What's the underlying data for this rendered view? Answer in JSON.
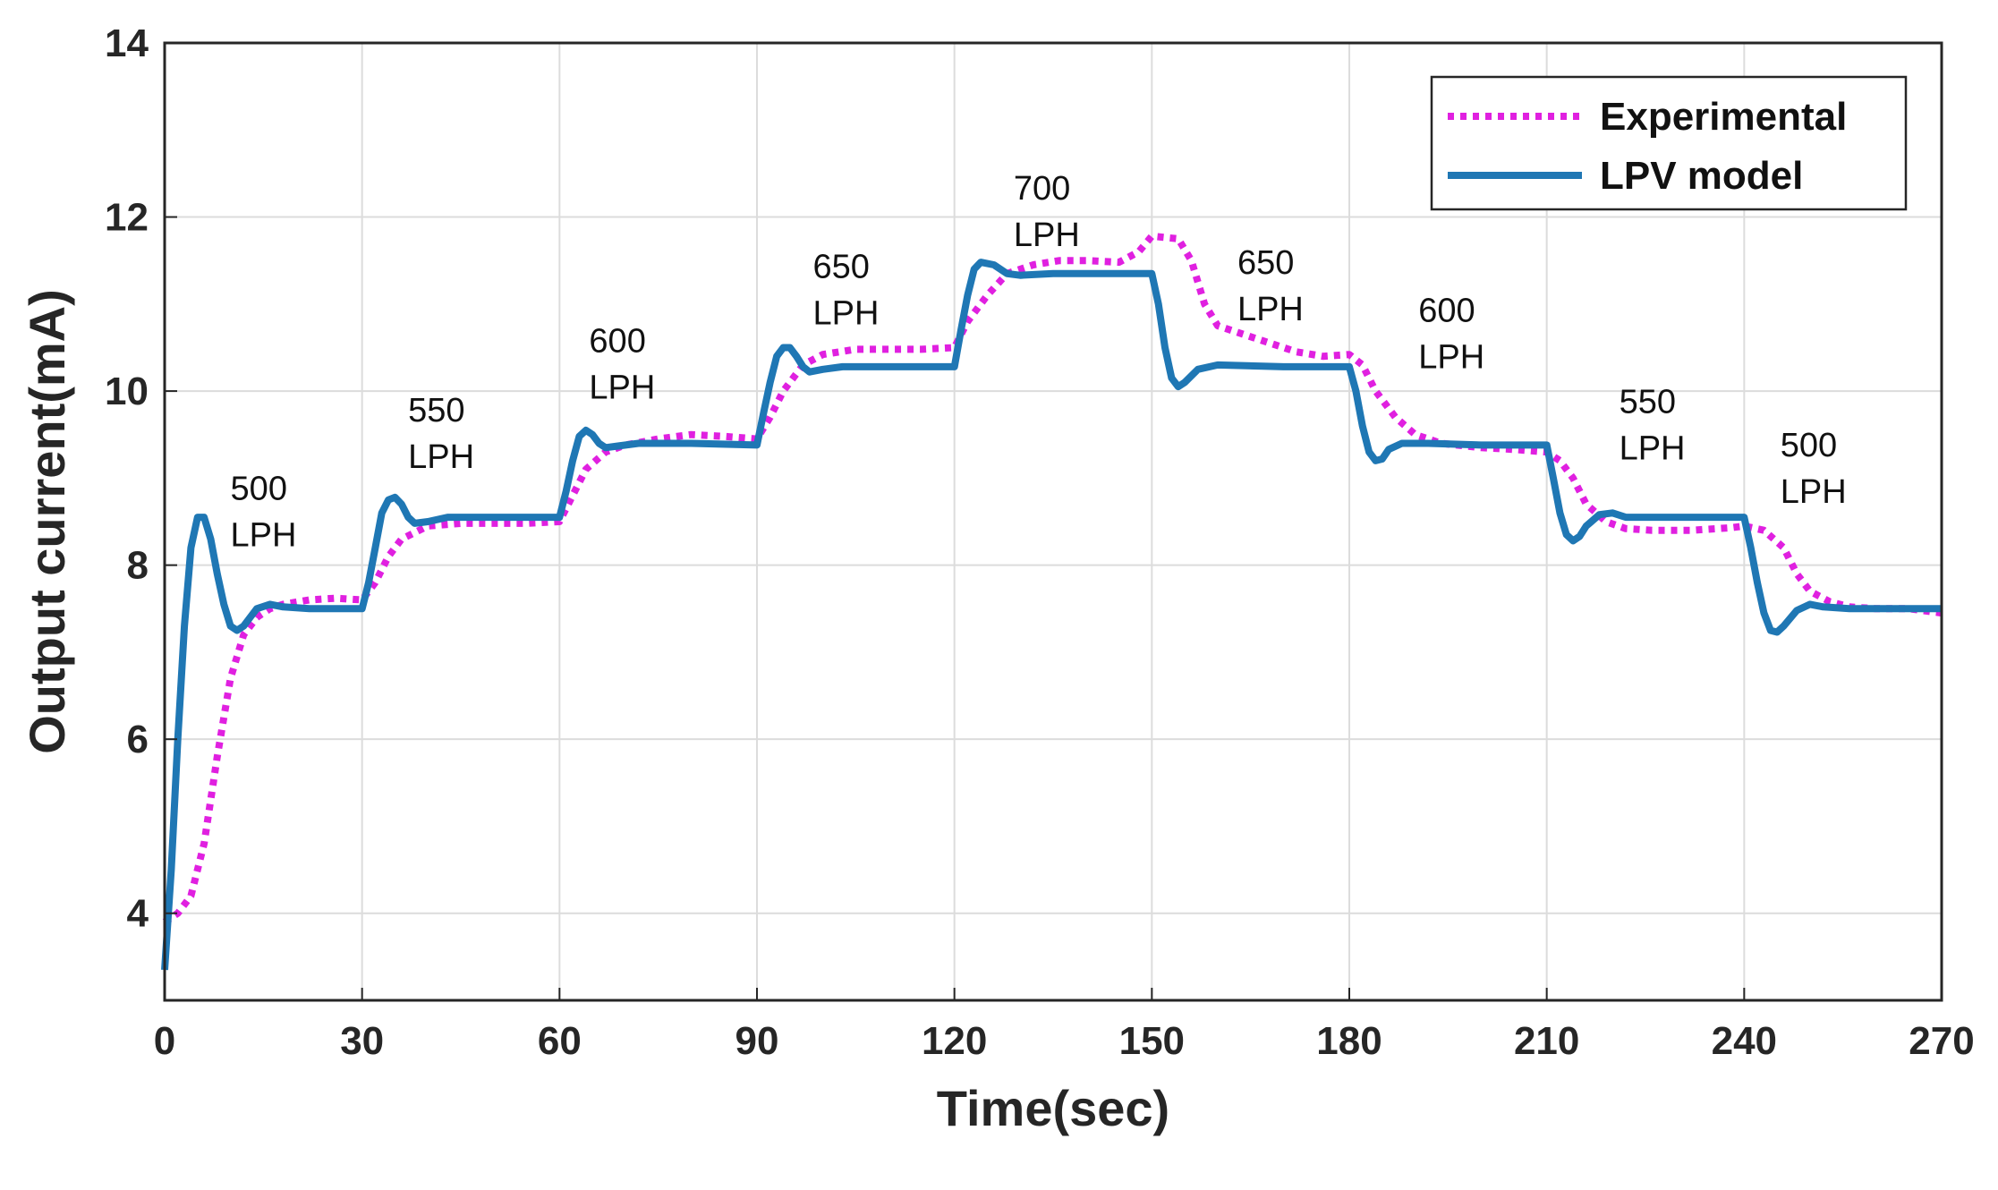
{
  "chart_data": {
    "type": "line",
    "title": "",
    "xlabel": "Time(sec)",
    "ylabel": "Output current(mA)",
    "xlim": [
      0,
      270
    ],
    "ylim": [
      3,
      14
    ],
    "xticks": [
      0,
      30,
      60,
      90,
      120,
      150,
      180,
      210,
      240,
      270
    ],
    "yticks": [
      4,
      6,
      8,
      10,
      12,
      14
    ],
    "grid": true,
    "legend_position": "top-right",
    "series": [
      {
        "name": "Experimental",
        "color": "#e020e0",
        "style": "dotted",
        "points": [
          [
            0,
            3.9
          ],
          [
            2,
            4.0
          ],
          [
            4,
            4.2
          ],
          [
            6,
            4.8
          ],
          [
            8,
            5.8
          ],
          [
            10,
            6.7
          ],
          [
            12,
            7.2
          ],
          [
            14,
            7.4
          ],
          [
            16,
            7.5
          ],
          [
            18,
            7.55
          ],
          [
            22,
            7.6
          ],
          [
            26,
            7.62
          ],
          [
            30,
            7.6
          ],
          [
            32,
            7.8
          ],
          [
            34,
            8.1
          ],
          [
            36,
            8.3
          ],
          [
            40,
            8.45
          ],
          [
            45,
            8.48
          ],
          [
            55,
            8.48
          ],
          [
            60,
            8.5
          ],
          [
            62,
            8.8
          ],
          [
            64,
            9.1
          ],
          [
            67,
            9.3
          ],
          [
            70,
            9.38
          ],
          [
            75,
            9.45
          ],
          [
            80,
            9.5
          ],
          [
            85,
            9.48
          ],
          [
            90,
            9.45
          ],
          [
            92,
            9.7
          ],
          [
            94,
            10.0
          ],
          [
            97,
            10.3
          ],
          [
            100,
            10.42
          ],
          [
            105,
            10.48
          ],
          [
            115,
            10.48
          ],
          [
            120,
            10.5
          ],
          [
            122,
            10.8
          ],
          [
            125,
            11.1
          ],
          [
            128,
            11.35
          ],
          [
            132,
            11.45
          ],
          [
            136,
            11.5
          ],
          [
            140,
            11.5
          ],
          [
            145,
            11.48
          ],
          [
            148,
            11.6
          ],
          [
            150,
            11.78
          ],
          [
            154,
            11.75
          ],
          [
            156,
            11.5
          ],
          [
            158,
            11.0
          ],
          [
            160,
            10.75
          ],
          [
            164,
            10.65
          ],
          [
            168,
            10.55
          ],
          [
            172,
            10.45
          ],
          [
            176,
            10.4
          ],
          [
            180,
            10.42
          ],
          [
            182,
            10.3
          ],
          [
            184,
            10.0
          ],
          [
            187,
            9.7
          ],
          [
            190,
            9.5
          ],
          [
            194,
            9.4
          ],
          [
            200,
            9.35
          ],
          [
            205,
            9.33
          ],
          [
            210,
            9.3
          ],
          [
            212,
            9.2
          ],
          [
            214,
            9.0
          ],
          [
            216,
            8.7
          ],
          [
            219,
            8.5
          ],
          [
            222,
            8.42
          ],
          [
            226,
            8.4
          ],
          [
            232,
            8.4
          ],
          [
            238,
            8.43
          ],
          [
            240,
            8.45
          ],
          [
            243,
            8.4
          ],
          [
            246,
            8.2
          ],
          [
            248,
            7.9
          ],
          [
            250,
            7.7
          ],
          [
            253,
            7.58
          ],
          [
            256,
            7.52
          ],
          [
            260,
            7.5
          ],
          [
            265,
            7.5
          ],
          [
            270,
            7.45
          ]
        ]
      },
      {
        "name": "LPV model",
        "color": "#1f77b4",
        "style": "solid",
        "points": [
          [
            0,
            3.35
          ],
          [
            1,
            4.5
          ],
          [
            2,
            6.0
          ],
          [
            3,
            7.3
          ],
          [
            4,
            8.2
          ],
          [
            5,
            8.55
          ],
          [
            6,
            8.55
          ],
          [
            7,
            8.3
          ],
          [
            8,
            7.9
          ],
          [
            9,
            7.55
          ],
          [
            10,
            7.3
          ],
          [
            11,
            7.25
          ],
          [
            12,
            7.3
          ],
          [
            13,
            7.4
          ],
          [
            14,
            7.5
          ],
          [
            16,
            7.55
          ],
          [
            18,
            7.52
          ],
          [
            22,
            7.5
          ],
          [
            28,
            7.5
          ],
          [
            30,
            7.5
          ],
          [
            31,
            7.8
          ],
          [
            32,
            8.2
          ],
          [
            33,
            8.6
          ],
          [
            34,
            8.75
          ],
          [
            35,
            8.78
          ],
          [
            36,
            8.7
          ],
          [
            37,
            8.55
          ],
          [
            38,
            8.48
          ],
          [
            40,
            8.5
          ],
          [
            43,
            8.55
          ],
          [
            48,
            8.55
          ],
          [
            55,
            8.55
          ],
          [
            60,
            8.55
          ],
          [
            61,
            8.85
          ],
          [
            62,
            9.2
          ],
          [
            63,
            9.48
          ],
          [
            64,
            9.55
          ],
          [
            65,
            9.5
          ],
          [
            66,
            9.4
          ],
          [
            67,
            9.35
          ],
          [
            69,
            9.37
          ],
          [
            72,
            9.4
          ],
          [
            80,
            9.4
          ],
          [
            90,
            9.38
          ],
          [
            91,
            9.75
          ],
          [
            92,
            10.1
          ],
          [
            93,
            10.4
          ],
          [
            94,
            10.5
          ],
          [
            95,
            10.5
          ],
          [
            96,
            10.4
          ],
          [
            97,
            10.28
          ],
          [
            98,
            10.22
          ],
          [
            100,
            10.25
          ],
          [
            103,
            10.28
          ],
          [
            110,
            10.28
          ],
          [
            120,
            10.28
          ],
          [
            121,
            10.7
          ],
          [
            122,
            11.1
          ],
          [
            123,
            11.4
          ],
          [
            124,
            11.48
          ],
          [
            126,
            11.45
          ],
          [
            128,
            11.35
          ],
          [
            130,
            11.33
          ],
          [
            135,
            11.35
          ],
          [
            145,
            11.35
          ],
          [
            150,
            11.35
          ],
          [
            151,
            11.0
          ],
          [
            152,
            10.5
          ],
          [
            153,
            10.15
          ],
          [
            154,
            10.05
          ],
          [
            155,
            10.1
          ],
          [
            157,
            10.25
          ],
          [
            160,
            10.3
          ],
          [
            170,
            10.28
          ],
          [
            180,
            10.28
          ],
          [
            181,
            10.0
          ],
          [
            182,
            9.6
          ],
          [
            183,
            9.3
          ],
          [
            184,
            9.2
          ],
          [
            185,
            9.22
          ],
          [
            186,
            9.33
          ],
          [
            188,
            9.4
          ],
          [
            192,
            9.4
          ],
          [
            200,
            9.38
          ],
          [
            210,
            9.38
          ],
          [
            211,
            9.0
          ],
          [
            212,
            8.6
          ],
          [
            213,
            8.35
          ],
          [
            214,
            8.28
          ],
          [
            215,
            8.33
          ],
          [
            216,
            8.45
          ],
          [
            218,
            8.58
          ],
          [
            220,
            8.6
          ],
          [
            222,
            8.55
          ],
          [
            230,
            8.55
          ],
          [
            240,
            8.55
          ],
          [
            241,
            8.2
          ],
          [
            242,
            7.8
          ],
          [
            243,
            7.45
          ],
          [
            244,
            7.25
          ],
          [
            245,
            7.23
          ],
          [
            246,
            7.3
          ],
          [
            248,
            7.48
          ],
          [
            250,
            7.55
          ],
          [
            252,
            7.52
          ],
          [
            256,
            7.5
          ],
          [
            262,
            7.5
          ],
          [
            270,
            7.5
          ]
        ]
      }
    ],
    "annotations": [
      {
        "line1": "500",
        "line2": "LPH",
        "x": 10,
        "y": 8.75
      },
      {
        "line1": "550",
        "line2": "LPH",
        "x": 37,
        "y": 9.65
      },
      {
        "line1": "600",
        "line2": "LPH",
        "x": 64.5,
        "y": 10.45
      },
      {
        "line1": "650",
        "line2": "LPH",
        "x": 98.5,
        "y": 11.3
      },
      {
        "line1": "700",
        "line2": "LPH",
        "x": 129,
        "y": 12.2
      },
      {
        "line1": "650",
        "line2": "LPH",
        "x": 163,
        "y": 11.35
      },
      {
        "line1": "600",
        "line2": "LPH",
        "x": 190.5,
        "y": 10.8
      },
      {
        "line1": "550",
        "line2": "LPH",
        "x": 221,
        "y": 9.75
      },
      {
        "line1": "500",
        "line2": "LPH",
        "x": 245.5,
        "y": 9.25
      }
    ]
  }
}
